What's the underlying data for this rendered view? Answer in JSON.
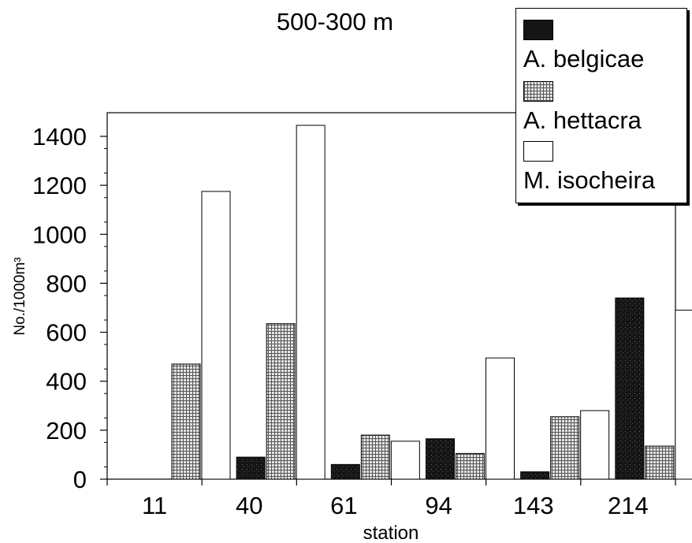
{
  "chart_data": {
    "type": "bar",
    "title": "500-300 m",
    "xlabel": "station",
    "ylabel": "No./1000m³",
    "ylim": [
      0,
      1500
    ],
    "yticks": [
      0,
      200,
      400,
      600,
      800,
      1000,
      1200,
      1400
    ],
    "categories": [
      "11",
      "40",
      "61",
      "94",
      "143",
      "214"
    ],
    "legend_placement": "top-right",
    "grid": false,
    "series": [
      {
        "name": "A. belgicae",
        "values": [
          0,
          90,
          60,
          165,
          30,
          740
        ],
        "color": "#151515",
        "pattern": "dark-mottled"
      },
      {
        "name": "A. hettacra",
        "values": [
          470,
          635,
          180,
          105,
          255,
          135
        ],
        "color": "#8a8a8a",
        "pattern": "crosshatch"
      },
      {
        "name": "M. isocheira",
        "values": [
          1175,
          1445,
          155,
          495,
          280,
          690
        ],
        "color": "#ffffff",
        "pattern": "none"
      }
    ]
  }
}
